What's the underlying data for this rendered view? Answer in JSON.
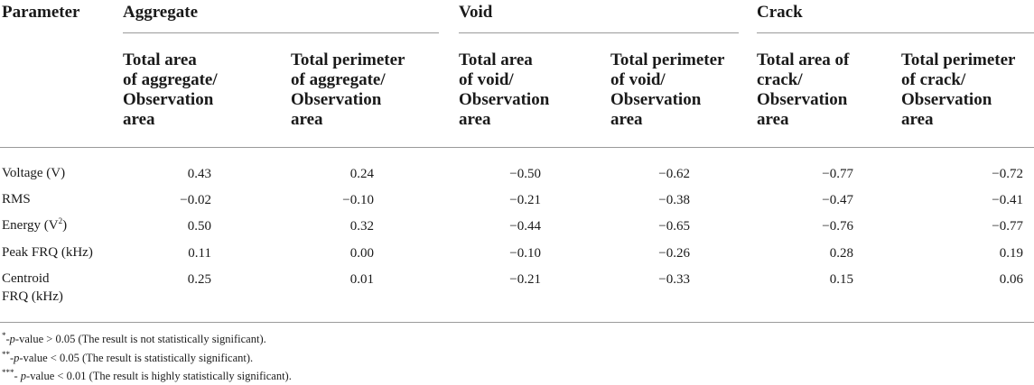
{
  "table": {
    "param_header": "Parameter",
    "groups": [
      "Aggregate",
      "Void",
      "Crack"
    ],
    "subheaders": [
      "Total area\nof aggregate/\nObservation\narea",
      "Total perimeter\nof aggregate/\nObservation\narea",
      "Total area\nof void/\nObservation\narea",
      "Total perimeter\nof void/\nObservation\narea",
      "Total area of\ncrack/\nObservation\narea",
      "Total perimeter\nof crack/\nObservation\narea"
    ],
    "rows": [
      {
        "label": "Voltage (V)",
        "values": [
          "0.43",
          "0.24",
          "−0.50",
          "−0.62",
          "−0.77",
          "−0.72"
        ]
      },
      {
        "label": "RMS",
        "values": [
          "−0.02",
          "−0.10",
          "−0.21",
          "−0.38",
          "−0.47",
          "−0.41"
        ]
      },
      {
        "label_pre": "Energy (V",
        "label_sup": "2",
        "label_post": ")",
        "values": [
          "0.50",
          "0.32",
          "−0.44",
          "−0.65",
          "−0.76",
          "−0.77"
        ]
      },
      {
        "label": "Peak FRQ (kHz)",
        "values": [
          "0.11",
          "0.00",
          "−0.10",
          "−0.26",
          "0.28",
          "0.19"
        ]
      },
      {
        "label": "Centroid\nFRQ (kHz)",
        "values": [
          "0.25",
          "0.01",
          "−0.21",
          "−0.33",
          "0.15",
          "0.06"
        ]
      }
    ]
  },
  "footnotes": [
    {
      "mark": "*",
      "dash": "-",
      "pval": "p",
      "rest": "-value > 0.05 (The result is not statistically significant)."
    },
    {
      "mark": "**",
      "dash": "-",
      "pval": "p",
      "rest": "-value < 0.05 (The result is statistically significant)."
    },
    {
      "mark": "***",
      "dash": "- ",
      "pval": "p",
      "rest": "-value < 0.01 (The result is highly statistically significant)."
    }
  ]
}
